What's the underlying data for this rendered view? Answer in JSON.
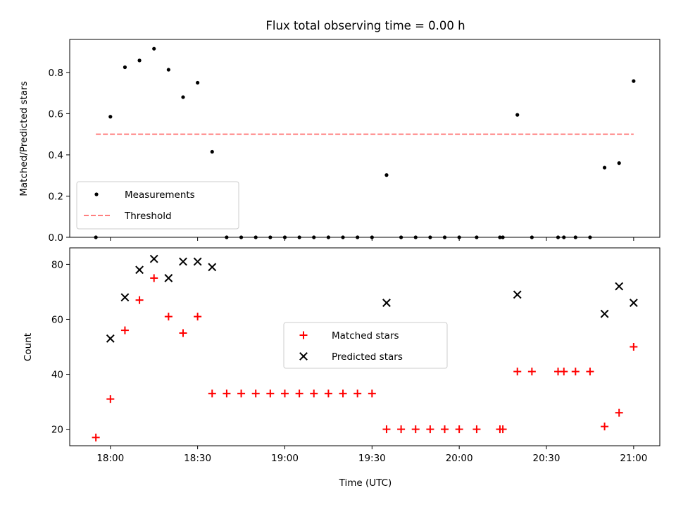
{
  "chart_data": [
    {
      "type": "scatter",
      "title": "Flux total observing time = 0.00 h",
      "ylabel": "Matched/Predicted stars",
      "xlabel": "",
      "ylim": [
        0,
        0.96
      ],
      "yticks": [
        "0.0",
        "0.2",
        "0.4",
        "0.6",
        "0.8"
      ],
      "ytick_values": [
        0,
        0.2,
        0.4,
        0.6,
        0.8
      ],
      "xlim": [
        "17:46",
        "21:09"
      ],
      "xticks": [
        "18:00",
        "18:30",
        "19:00",
        "19:30",
        "20:00",
        "20:30",
        "21:00"
      ],
      "series": [
        {
          "name": "Measurements",
          "kind": "dots",
          "color": "#000000",
          "points": [
            [
              "17:55",
              0.0
            ],
            [
              "18:00",
              0.585
            ],
            [
              "18:05",
              0.825
            ],
            [
              "18:10",
              0.858
            ],
            [
              "18:15",
              0.915
            ],
            [
              "18:20",
              0.813
            ],
            [
              "18:25",
              0.68
            ],
            [
              "18:30",
              0.75
            ],
            [
              "18:35",
              0.415
            ],
            [
              "18:40",
              0.0
            ],
            [
              "18:45",
              0.0
            ],
            [
              "18:50",
              0.0
            ],
            [
              "18:55",
              0.0
            ],
            [
              "19:00",
              0.0
            ],
            [
              "19:05",
              0.0
            ],
            [
              "19:10",
              0.0
            ],
            [
              "19:15",
              0.0
            ],
            [
              "19:20",
              0.0
            ],
            [
              "19:25",
              0.0
            ],
            [
              "19:30",
              0.0
            ],
            [
              "19:35",
              0.302
            ],
            [
              "19:40",
              0.0
            ],
            [
              "19:45",
              0.0
            ],
            [
              "19:50",
              0.0
            ],
            [
              "19:55",
              0.0
            ],
            [
              "20:00",
              0.0
            ],
            [
              "20:06",
              0.0
            ],
            [
              "20:14",
              0.0
            ],
            [
              "20:15",
              0.0
            ],
            [
              "20:20",
              0.594
            ],
            [
              "20:25",
              0.0
            ],
            [
              "20:34",
              0.0
            ],
            [
              "20:36",
              0.0
            ],
            [
              "20:40",
              0.0
            ],
            [
              "20:45",
              0.0
            ],
            [
              "20:50",
              0.338
            ],
            [
              "20:55",
              0.36
            ],
            [
              "21:00",
              0.758
            ]
          ]
        },
        {
          "name": "Threshold",
          "kind": "dashed-line",
          "color": "#ff7f7f",
          "points": [
            [
              "17:55",
              0.5
            ],
            [
              "21:00",
              0.5
            ]
          ]
        }
      ],
      "legend_position": "lower-left"
    },
    {
      "type": "scatter",
      "title": "",
      "ylabel": "Count",
      "xlabel": "Time (UTC)",
      "ylim": [
        14,
        86
      ],
      "yticks": [
        "20",
        "40",
        "60",
        "80"
      ],
      "ytick_values": [
        20,
        40,
        60,
        80
      ],
      "xlim": [
        "17:46",
        "21:09"
      ],
      "xticks": [
        "18:00",
        "18:30",
        "19:00",
        "19:30",
        "20:00",
        "20:30",
        "21:00"
      ],
      "series": [
        {
          "name": "Matched stars",
          "kind": "plus",
          "color": "#ff0000",
          "points": [
            [
              "17:55",
              17
            ],
            [
              "18:00",
              31
            ],
            [
              "18:05",
              56
            ],
            [
              "18:10",
              67
            ],
            [
              "18:15",
              75
            ],
            [
              "18:20",
              61
            ],
            [
              "18:25",
              55
            ],
            [
              "18:30",
              61
            ],
            [
              "18:35",
              33
            ],
            [
              "18:40",
              33
            ],
            [
              "18:45",
              33
            ],
            [
              "18:50",
              33
            ],
            [
              "18:55",
              33
            ],
            [
              "19:00",
              33
            ],
            [
              "19:05",
              33
            ],
            [
              "19:10",
              33
            ],
            [
              "19:15",
              33
            ],
            [
              "19:20",
              33
            ],
            [
              "19:25",
              33
            ],
            [
              "19:30",
              33
            ],
            [
              "19:35",
              20
            ],
            [
              "19:40",
              20
            ],
            [
              "19:45",
              20
            ],
            [
              "19:50",
              20
            ],
            [
              "19:55",
              20
            ],
            [
              "20:00",
              20
            ],
            [
              "20:06",
              20
            ],
            [
              "20:14",
              20
            ],
            [
              "20:15",
              20
            ],
            [
              "20:20",
              41
            ],
            [
              "20:25",
              41
            ],
            [
              "20:34",
              41
            ],
            [
              "20:36",
              41
            ],
            [
              "20:40",
              41
            ],
            [
              "20:45",
              41
            ],
            [
              "20:50",
              21
            ],
            [
              "20:55",
              26
            ],
            [
              "21:00",
              50
            ]
          ]
        },
        {
          "name": "Predicted stars",
          "kind": "cross",
          "color": "#000000",
          "points": [
            [
              "18:00",
              53
            ],
            [
              "18:05",
              68
            ],
            [
              "18:10",
              78
            ],
            [
              "18:15",
              82
            ],
            [
              "18:20",
              75
            ],
            [
              "18:25",
              81
            ],
            [
              "18:30",
              81
            ],
            [
              "18:35",
              79
            ],
            [
              "19:35",
              66
            ],
            [
              "20:20",
              69
            ],
            [
              "20:50",
              62
            ],
            [
              "20:55",
              72
            ],
            [
              "21:00",
              66
            ]
          ]
        }
      ],
      "legend_position": "center"
    }
  ]
}
